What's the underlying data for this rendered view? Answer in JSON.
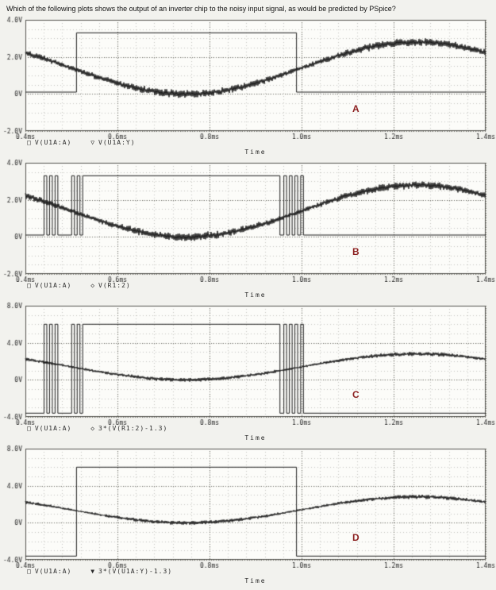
{
  "question": "Which of the following plots shows the output of an inverter chip to the noisy input signal, as would be predicted by PSpice?",
  "colors": {
    "page_bg": "#f2f2ee",
    "plot_bg": "#fcfcf9",
    "grid_minor": "#c5c5c0",
    "grid_major": "#6f6f68",
    "frame": "#55544f",
    "trace": "#1b1b1b",
    "tick_text": "#2a2a2a",
    "answer_label": "#8b1f1f"
  },
  "chart_data": [
    {
      "type": "line",
      "label": "A",
      "xlabel": "Time",
      "xlim": [
        0.4,
        1.4
      ],
      "ylim": [
        -2,
        4
      ],
      "x_minor_step": 0.04,
      "y_minor_step": 0.5,
      "xticks": [
        {
          "v": 0.4,
          "t": "0.4ms"
        },
        {
          "v": 0.6,
          "t": "0.6ms"
        },
        {
          "v": 0.8,
          "t": "0.8ms"
        },
        {
          "v": 1.0,
          "t": "1.0ms"
        },
        {
          "v": 1.2,
          "t": "1.2ms"
        },
        {
          "v": 1.4,
          "t": "1.4ms"
        }
      ],
      "yticks": [
        {
          "v": 4,
          "t": "4.0V"
        },
        {
          "v": 2,
          "t": "2.0V"
        },
        {
          "v": 0,
          "t": "0V"
        },
        {
          "v": -2,
          "t": "-2.0V"
        }
      ],
      "legend": [
        {
          "marker": "□",
          "label": "V(U1A:A)"
        },
        {
          "marker": "▽",
          "label": "V(U1A:Y)"
        }
      ],
      "series": [
        {
          "name": "V(U1A:A)",
          "kind": "noisy_sine",
          "center": 1.4,
          "amp": 1.4,
          "t_min": 0.75,
          "period": 1.0,
          "noise_base": 0.1,
          "noise_var": 0.08
        },
        {
          "name": "V(U1A:Y)",
          "kind": "square",
          "low": 0.1,
          "high": 3.3,
          "high_intervals": [
            [
              0.511,
              0.989
            ]
          ]
        }
      ]
    },
    {
      "type": "line",
      "label": "B",
      "xlabel": "Time",
      "xlim": [
        0.4,
        1.4
      ],
      "ylim": [
        -2,
        4
      ],
      "x_minor_step": 0.04,
      "y_minor_step": 0.5,
      "xticks": [
        {
          "v": 0.4,
          "t": "0.4ms"
        },
        {
          "v": 0.6,
          "t": "0.6ms"
        },
        {
          "v": 0.8,
          "t": "0.8ms"
        },
        {
          "v": 1.0,
          "t": "1.0ms"
        },
        {
          "v": 1.2,
          "t": "1.2ms"
        },
        {
          "v": 1.4,
          "t": "1.4ms"
        }
      ],
      "yticks": [
        {
          "v": 4,
          "t": "4.0V"
        },
        {
          "v": 2,
          "t": "2.0V"
        },
        {
          "v": 0,
          "t": "0V"
        },
        {
          "v": -2,
          "t": "-2.0V"
        }
      ],
      "legend": [
        {
          "marker": "□",
          "label": "V(U1A:A)"
        },
        {
          "marker": "◇",
          "label": "V(R1:2)"
        }
      ],
      "series": [
        {
          "name": "V(U1A:A)",
          "kind": "noisy_sine",
          "center": 1.4,
          "amp": 1.4,
          "t_min": 0.75,
          "period": 1.0,
          "noise_base": 0.1,
          "noise_var": 0.08
        },
        {
          "name": "V(R1:2)",
          "kind": "square",
          "low": 0.1,
          "high": 3.3,
          "high_intervals": [
            [
              0.4405,
              0.4465
            ],
            [
              0.4525,
              0.4585
            ],
            [
              0.4645,
              0.4705
            ],
            [
              0.5005,
              0.5065
            ],
            [
              0.5125,
              0.5185
            ],
            [
              0.5245,
              0.953
            ],
            [
              0.9615,
              0.9675
            ],
            [
              0.9735,
              0.9795
            ],
            [
              0.9855,
              0.9915
            ],
            [
              0.998,
              1.004
            ]
          ]
        }
      ]
    },
    {
      "type": "line",
      "label": "C",
      "xlabel": "Time",
      "xlim": [
        0.4,
        1.4
      ],
      "ylim": [
        -4,
        8
      ],
      "x_minor_step": 0.04,
      "y_minor_step": 1.0,
      "xticks": [
        {
          "v": 0.4,
          "t": "0.4ms"
        },
        {
          "v": 0.6,
          "t": "0.6ms"
        },
        {
          "v": 0.8,
          "t": "0.8ms"
        },
        {
          "v": 1.0,
          "t": "1.0ms"
        },
        {
          "v": 1.2,
          "t": "1.2ms"
        },
        {
          "v": 1.4,
          "t": "1.4ms"
        }
      ],
      "yticks": [
        {
          "v": 8,
          "t": "8.0V"
        },
        {
          "v": 4,
          "t": "4.0V"
        },
        {
          "v": 0,
          "t": "0V"
        },
        {
          "v": -4,
          "t": "-4.0V"
        }
      ],
      "legend": [
        {
          "marker": "□",
          "label": "V(U1A:A)"
        },
        {
          "marker": "◇",
          "label": "3*(V(R1:2)-1.3)"
        }
      ],
      "series": [
        {
          "name": "V(U1A:A)",
          "kind": "noisy_sine",
          "center": 1.4,
          "amp": 1.4,
          "t_min": 0.75,
          "period": 1.0,
          "noise_base": 0.1,
          "noise_var": 0.08
        },
        {
          "name": "3*(V(R1:2)-1.3)",
          "kind": "square",
          "low": -3.6,
          "high": 6.0,
          "high_intervals": [
            [
              0.4405,
              0.4465
            ],
            [
              0.4525,
              0.4585
            ],
            [
              0.4645,
              0.4705
            ],
            [
              0.5005,
              0.5065
            ],
            [
              0.5125,
              0.5185
            ],
            [
              0.5245,
              0.953
            ],
            [
              0.9615,
              0.9675
            ],
            [
              0.9735,
              0.9795
            ],
            [
              0.9855,
              0.9915
            ],
            [
              0.998,
              1.004
            ]
          ]
        }
      ]
    },
    {
      "type": "line",
      "label": "D",
      "xlabel": "Time",
      "xlim": [
        0.4,
        1.4
      ],
      "ylim": [
        -4,
        8
      ],
      "x_minor_step": 0.04,
      "y_minor_step": 1.0,
      "xticks": [
        {
          "v": 0.4,
          "t": "0.4ms"
        },
        {
          "v": 0.6,
          "t": "0.6ms"
        },
        {
          "v": 0.8,
          "t": "0.8ms"
        },
        {
          "v": 1.0,
          "t": "1.0ms"
        },
        {
          "v": 1.2,
          "t": "1.2ms"
        },
        {
          "v": 1.4,
          "t": "1.4ms"
        }
      ],
      "yticks": [
        {
          "v": 8,
          "t": "8.0V"
        },
        {
          "v": 4,
          "t": "4.0V"
        },
        {
          "v": 0,
          "t": "0V"
        },
        {
          "v": -4,
          "t": "-4.0V"
        }
      ],
      "legend": [
        {
          "marker": "□",
          "label": "V(U1A:A)"
        },
        {
          "marker": "▼",
          "label": "3*(V(U1A:Y)-1.3)"
        }
      ],
      "series": [
        {
          "name": "V(U1A:A)",
          "kind": "noisy_sine",
          "center": 1.4,
          "amp": 1.4,
          "t_min": 0.75,
          "period": 1.0,
          "noise_base": 0.1,
          "noise_var": 0.08
        },
        {
          "name": "3*(V(U1A:Y)-1.3)",
          "kind": "square",
          "low": -3.6,
          "high": 6.0,
          "high_intervals": [
            [
              0.511,
              0.989
            ]
          ]
        }
      ]
    }
  ]
}
